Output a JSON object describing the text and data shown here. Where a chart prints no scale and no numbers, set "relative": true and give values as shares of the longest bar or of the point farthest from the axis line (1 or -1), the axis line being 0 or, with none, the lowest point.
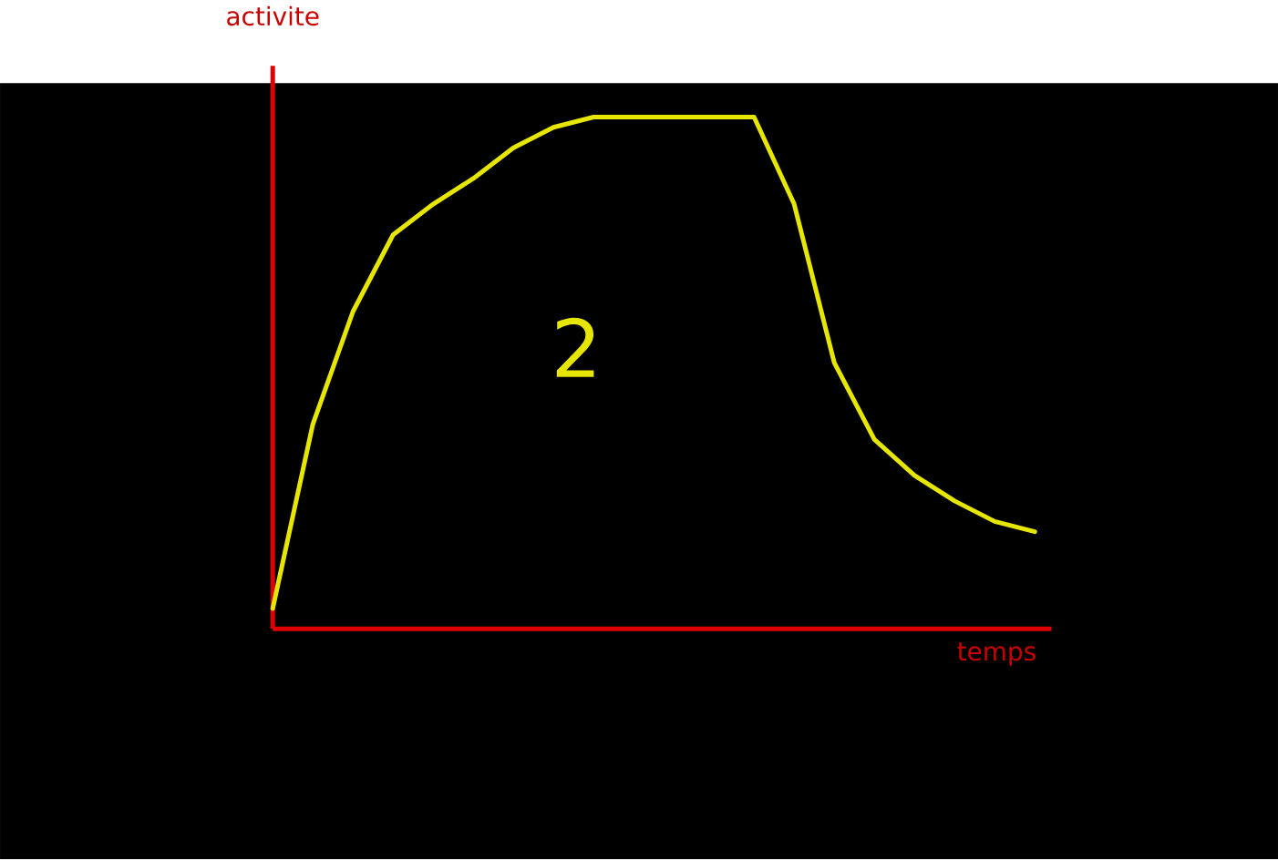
{
  "chart_data": {
    "type": "line",
    "relative": true,
    "xlabel": "temps",
    "ylabel": "activite",
    "annotations": [
      "2"
    ],
    "categories": [
      null,
      null,
      null,
      null,
      null,
      null,
      null,
      null,
      null,
      null,
      null,
      null,
      null,
      null,
      null,
      null,
      null,
      null,
      null,
      null
    ],
    "series": [
      {
        "color": "#e6e600",
        "values": [
          0.04,
          0.4,
          0.62,
          0.77,
          0.83,
          0.88,
          0.94,
          0.98,
          1.0,
          1.0,
          1.0,
          1.0,
          1.0,
          0.83,
          0.52,
          0.37,
          0.3,
          0.25,
          0.21,
          0.19
        ]
      }
    ]
  }
}
